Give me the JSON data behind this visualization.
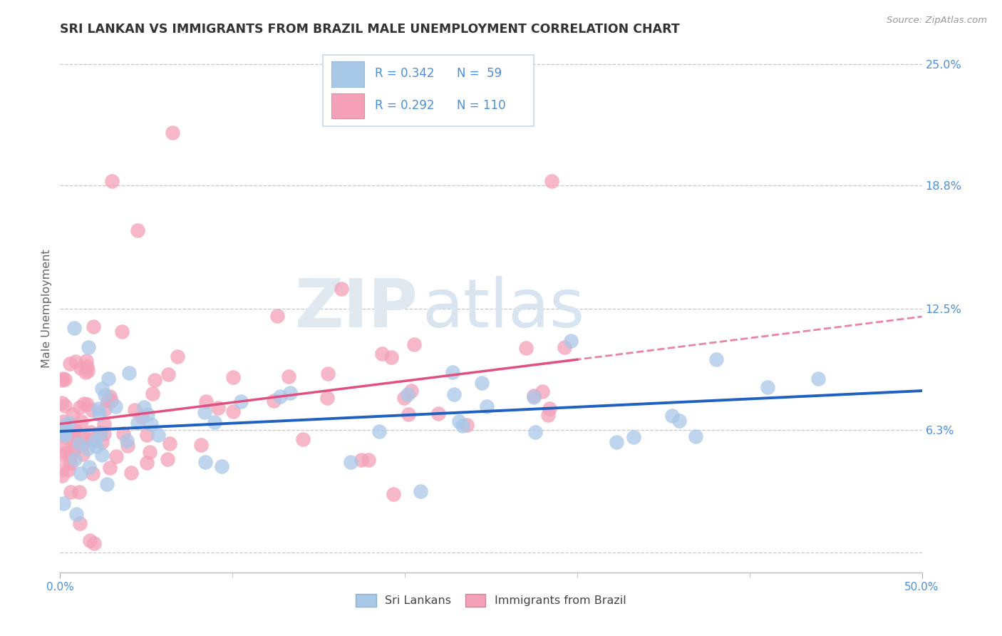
{
  "title": "SRI LANKAN VS IMMIGRANTS FROM BRAZIL MALE UNEMPLOYMENT CORRELATION CHART",
  "source": "Source: ZipAtlas.com",
  "ylabel": "Male Unemployment",
  "xlim": [
    0.0,
    0.5
  ],
  "ylim": [
    -0.01,
    0.26
  ],
  "plot_ylim": [
    0.0,
    0.25
  ],
  "ytick_vals": [
    0.063,
    0.125,
    0.188,
    0.25
  ],
  "ytick_labels": [
    "6.3%",
    "12.5%",
    "18.8%",
    "25.0%"
  ],
  "xtick_vals": [
    0.0,
    0.5
  ],
  "xtick_labels": [
    "0.0%",
    "50.0%"
  ],
  "color_sri": "#a8c8e8",
  "color_brazil": "#f4a0b8",
  "trendline_sri_color": "#2060c0",
  "trendline_brazil_color": "#e05080",
  "watermark_zip": "ZIP",
  "watermark_atlas": "atlas",
  "background_color": "#ffffff",
  "grid_color": "#c8c8c8",
  "text_color": "#4a90d9",
  "title_color": "#333333",
  "sri_R": 0.342,
  "brazil_R": 0.292,
  "sri_N": 59,
  "brazil_N": 110,
  "legend_box_color": "#e8f0f8",
  "legend_box_border": "#c0d0e0"
}
